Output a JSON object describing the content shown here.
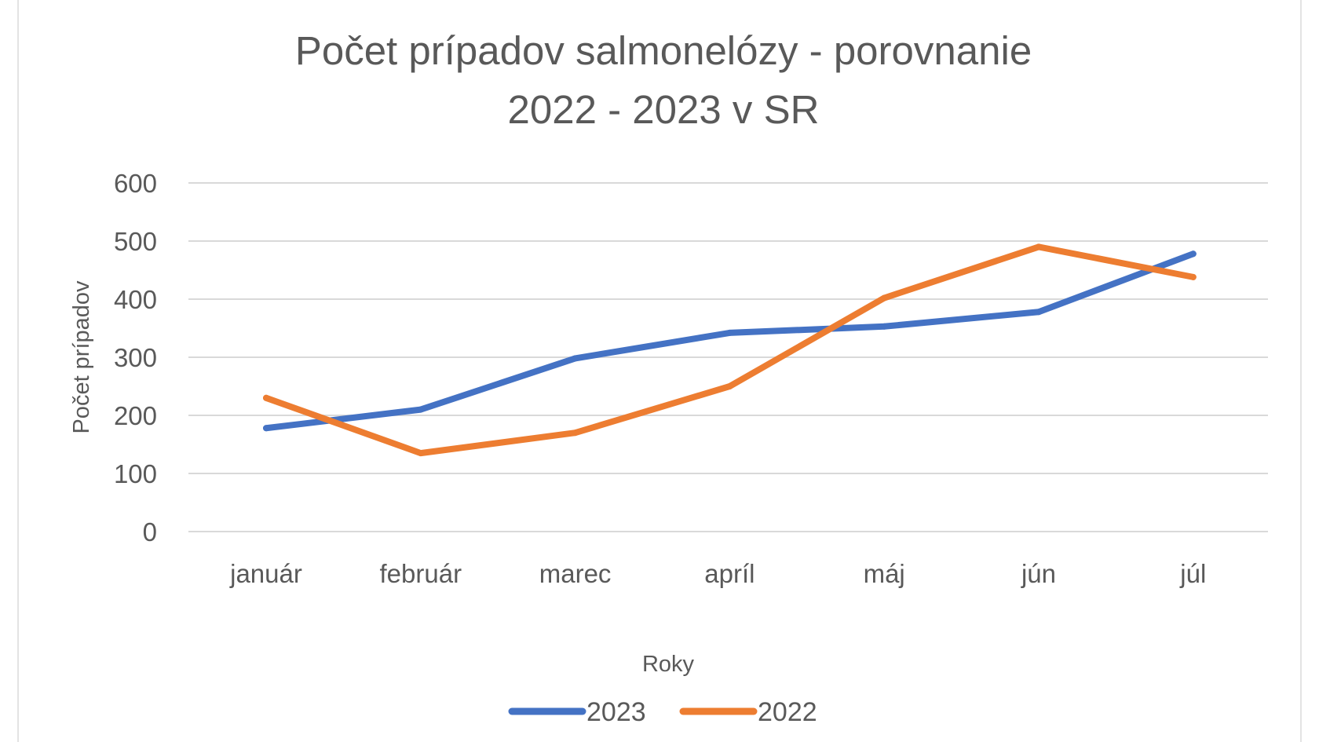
{
  "chart_data": {
    "type": "line",
    "title_lines": [
      "Počet prípadov salmonelózy - porovnanie",
      "2022 - 2023 v SR"
    ],
    "xlabel": "Roky",
    "ylabel": "Počet prípadov",
    "categories": [
      "január",
      "február",
      "marec",
      "apríl",
      "máj",
      "jún",
      "júl"
    ],
    "y_ticks": [
      "0",
      "100",
      "200",
      "300",
      "400",
      "500",
      "600"
    ],
    "ylim": [
      0,
      600
    ],
    "grid": true,
    "legend_position": "bottom",
    "series": [
      {
        "name": "2023",
        "color": "#4472C4",
        "values": [
          178,
          210,
          298,
          342,
          353,
          378,
          478
        ]
      },
      {
        "name": "2022",
        "color": "#ED7D31",
        "values": [
          230,
          135,
          170,
          250,
          402,
          490,
          438
        ]
      }
    ]
  }
}
